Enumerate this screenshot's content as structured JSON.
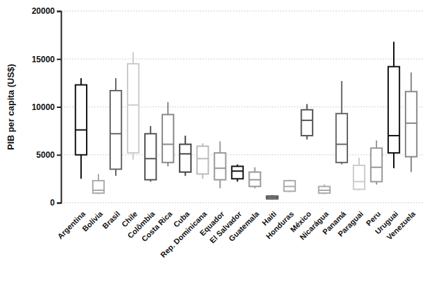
{
  "chart_data": {
    "type": "box",
    "y_label": "PIB per capita (US$)",
    "categories": [
      "Argentina",
      "Bolívia",
      "Brasil",
      "Chile",
      "Colômbia",
      "Costa Rica",
      "Cuba",
      "Rep. Dominicana",
      "Equador",
      "El Salvador",
      "Guatemala",
      "Haiti",
      "Honduras",
      "México",
      "Nicarágua",
      "Panamá",
      "Paraguai",
      "Peru",
      "Uruguai",
      "Venezuela"
    ],
    "min": [
      2500,
      900,
      2800,
      4500,
      2200,
      3800,
      2800,
      2500,
      1500,
      2200,
      1500,
      350,
      1100,
      6600,
      900,
      4000,
      1300,
      1900,
      3600,
      3200
    ],
    "q1": [
      5000,
      1000,
      3500,
      5200,
      2400,
      4200,
      3200,
      3000,
      2400,
      2500,
      1700,
      400,
      1200,
      7000,
      1000,
      4200,
      1400,
      2200,
      5200,
      4800
    ],
    "median": [
      7600,
      1300,
      7200,
      10200,
      4600,
      6100,
      5100,
      4600,
      3600,
      3300,
      2400,
      550,
      1700,
      8600,
      1300,
      6100,
      2200,
      3700,
      7000,
      8300
    ],
    "q3": [
      12300,
      2300,
      11700,
      14500,
      7200,
      9200,
      6100,
      5900,
      5200,
      3800,
      3200,
      700,
      2300,
      9700,
      1700,
      9300,
      3900,
      5700,
      14200,
      11600
    ],
    "max": [
      13000,
      3000,
      13000,
      15700,
      8000,
      10500,
      7000,
      6200,
      6400,
      4000,
      3700,
      800,
      2400,
      10300,
      1900,
      12700,
      4700,
      6500,
      16800,
      13600
    ],
    "colors": [
      "#111111",
      "#aaaaaa",
      "#666666",
      "#cccccc",
      "#555555",
      "#888888",
      "#444444",
      "#bbbbbb",
      "#999999",
      "#111111",
      "#999999",
      "#555555",
      "#aaaaaa",
      "#555555",
      "#aaaaaa",
      "#666666",
      "#cccccc",
      "#999999",
      "#111111",
      "#888888"
    ],
    "ylim": [
      0,
      20000
    ],
    "yticks": [
      0,
      5000,
      10000,
      15000,
      20000
    ],
    "grid": true
  }
}
